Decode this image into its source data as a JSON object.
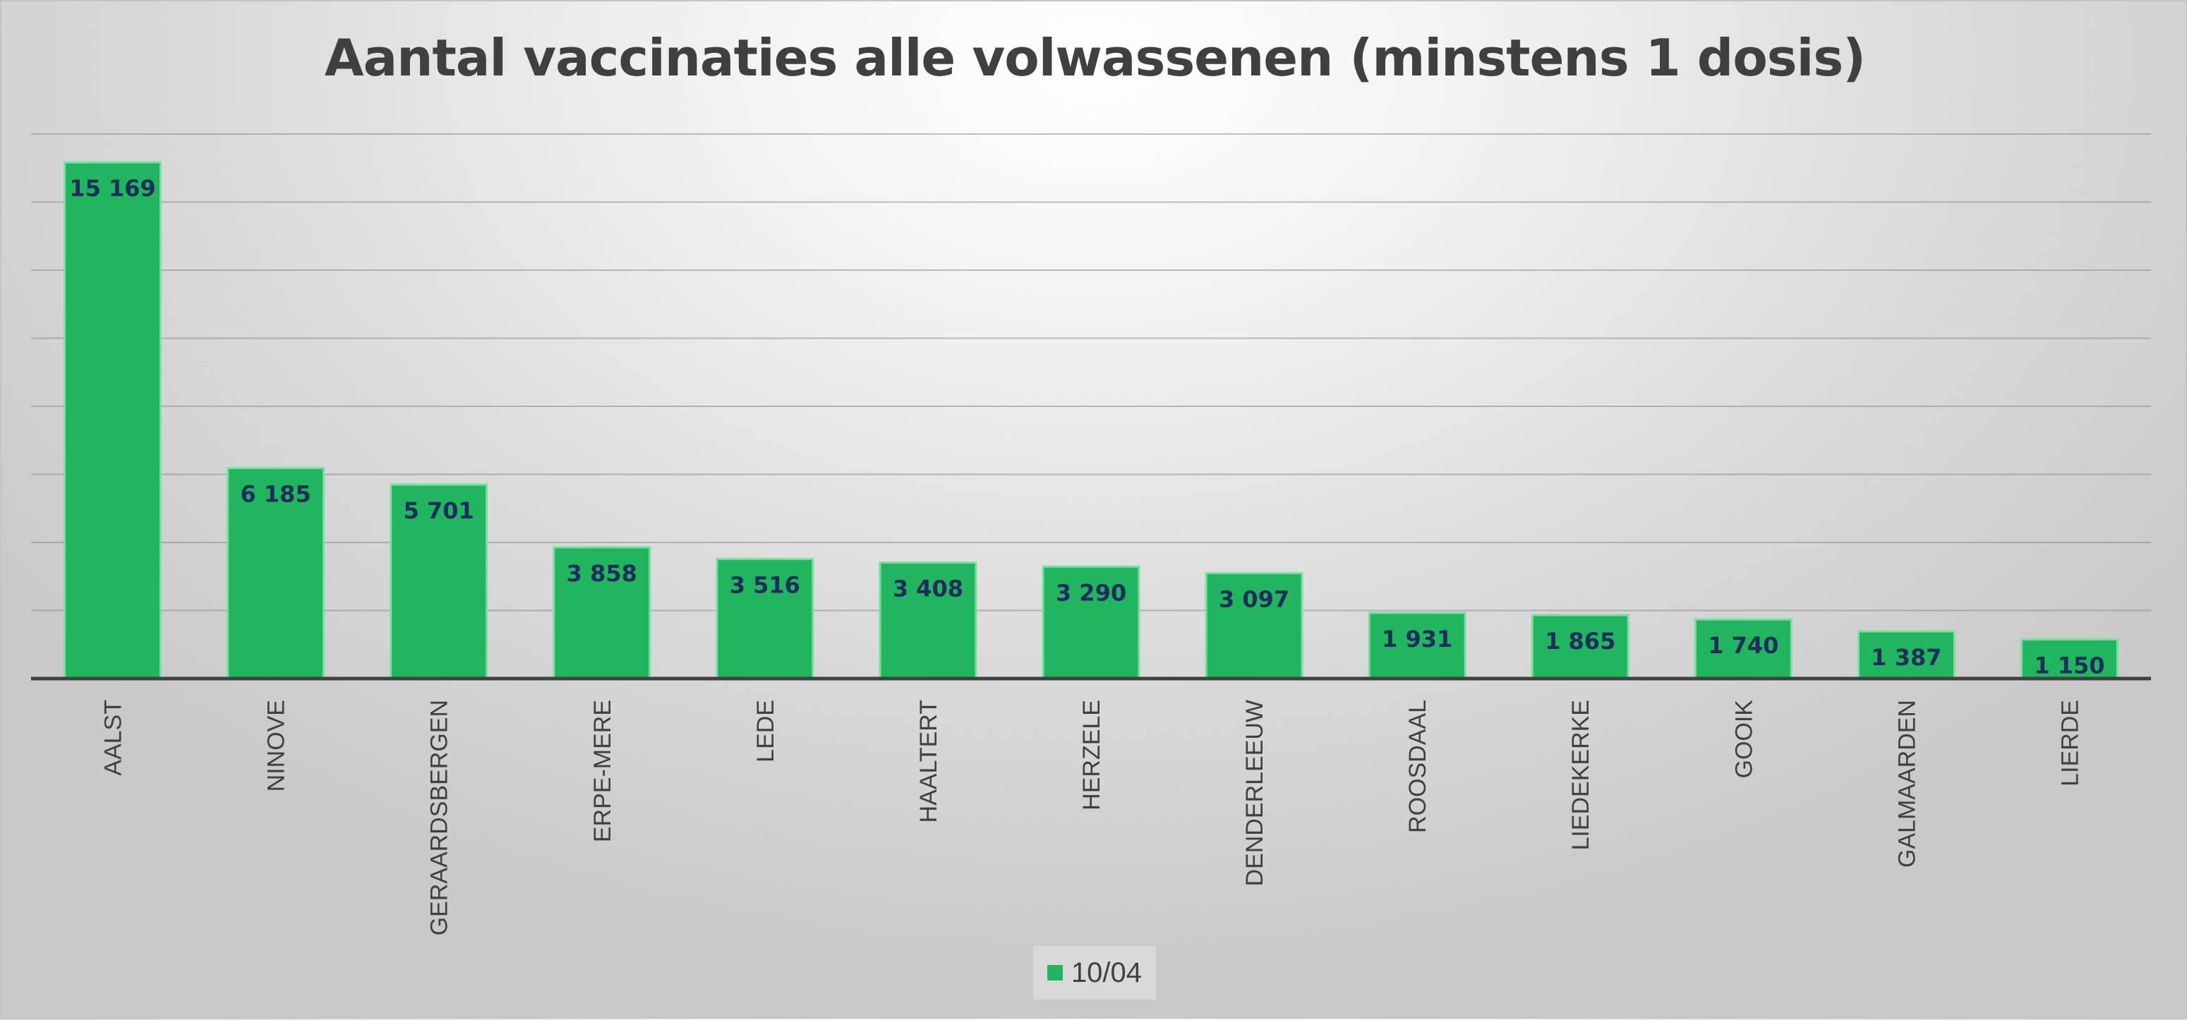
{
  "chart_data": {
    "type": "bar",
    "title": "Aantal vaccinaties alle volwassenen (minstens 1 dosis)",
    "categories": [
      "AALST",
      "NINOVE",
      "GERAARDSBERGEN",
      "ERPE-MERE",
      "LEDE",
      "HAALTERT",
      "HERZELE",
      "DENDERLEEUW",
      "ROOSDAAL",
      "LIEDEKERKE",
      "GOOIK",
      "GALMAARDEN",
      "LIERDE"
    ],
    "series": [
      {
        "name": "10/04",
        "values": [
          15169,
          6185,
          5701,
          3858,
          3516,
          3408,
          3290,
          3097,
          1931,
          1865,
          1740,
          1387,
          1150
        ],
        "labels": [
          "15 169",
          "6 185",
          "5 701",
          "3 858",
          "3 516",
          "3 408",
          "3 290",
          "3 097",
          "1 931",
          "1 865",
          "1 740",
          "1 387",
          "1 150"
        ]
      }
    ],
    "xlabel": "",
    "ylabel": "",
    "ylim": [
      0,
      16000
    ],
    "grid": true,
    "legend_position": "bottom",
    "colors": {
      "bar": "#21b560",
      "bar_edge": "#7fdca4",
      "data_label": "#1f2d5a",
      "axis_label": "#404040",
      "baseline": "#404040"
    }
  }
}
